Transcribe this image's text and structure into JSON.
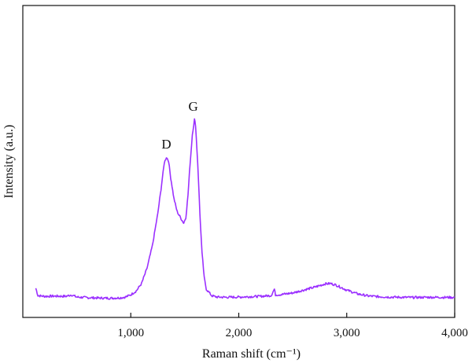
{
  "chart_data": {
    "type": "line",
    "title": "",
    "xlabel": "Raman shift (cm⁻¹)",
    "ylabel": "Intensity (a.u.)",
    "xlim": [
      0,
      4000
    ],
    "ylim": [
      0,
      1
    ],
    "x_ticks": [
      1000,
      2000,
      3000,
      4000
    ],
    "x_tick_labels": [
      "1,000",
      "2,000",
      "3,000",
      "4,000"
    ],
    "y_ticks_shown": false,
    "grid": false,
    "legend": "none",
    "series": [
      {
        "color": "#9b30ff",
        "x": [
          120,
          140,
          200,
          300,
          400,
          450,
          500,
          600,
          700,
          800,
          900,
          950,
          1000,
          1050,
          1100,
          1150,
          1200,
          1250,
          1280,
          1310,
          1330,
          1350,
          1370,
          1400,
          1430,
          1460,
          1490,
          1510,
          1530,
          1550,
          1570,
          1590,
          1600,
          1620,
          1640,
          1660,
          1680,
          1700,
          1750,
          1800,
          1900,
          2000,
          2100,
          2200,
          2300,
          2330,
          2340,
          2360,
          2400,
          2500,
          2600,
          2700,
          2800,
          2850,
          2900,
          3000,
          3100,
          3200,
          3300,
          3400,
          3600,
          3800,
          4000
        ],
        "y": [
          0.055,
          0.016,
          0.012,
          0.013,
          0.012,
          0.02,
          0.008,
          0.005,
          0.003,
          0.002,
          0.004,
          0.008,
          0.02,
          0.04,
          0.08,
          0.16,
          0.28,
          0.45,
          0.58,
          0.72,
          0.75,
          0.73,
          0.64,
          0.53,
          0.46,
          0.43,
          0.4,
          0.43,
          0.55,
          0.72,
          0.87,
          0.95,
          0.92,
          0.72,
          0.45,
          0.24,
          0.11,
          0.05,
          0.015,
          0.008,
          0.007,
          0.008,
          0.01,
          0.012,
          0.016,
          0.05,
          0.02,
          0.02,
          0.022,
          0.03,
          0.045,
          0.06,
          0.078,
          0.08,
          0.072,
          0.045,
          0.025,
          0.014,
          0.01,
          0.008,
          0.006,
          0.007,
          0.006
        ]
      }
    ],
    "annotations": [
      {
        "text": "D",
        "x": 1330,
        "y": 0.75
      },
      {
        "text": "G",
        "x": 1600,
        "y": 0.95
      }
    ]
  }
}
